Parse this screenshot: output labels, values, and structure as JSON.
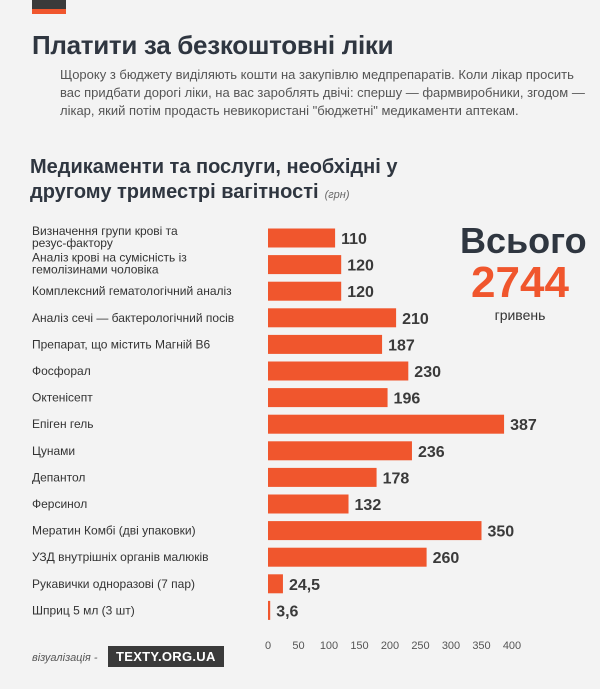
{
  "headline": "Платити за безкоштовні ліки",
  "intro": "Щороку з бюджету виділяють кошти на закупівлю медпрепаратів. Коли лікар просить вас придбати дорогі ліки, на вас зароблять двічі: спершу — фармвиробники,  згодом — лікар, який потім продасть невикористані \"бюджетні\" медикаменти аптекам.",
  "total": {
    "label": "Всього",
    "value": "2744",
    "unit": "гривень"
  },
  "footer": {
    "label": "візуалізація -",
    "logo": "TEXTY.ORG.UA"
  },
  "colors": {
    "bar": "#f0562d",
    "text": "#2f3640",
    "accent": "#f0562d",
    "background": "#f3f3f3"
  },
  "chart_data": {
    "type": "bar",
    "orientation": "horizontal",
    "title": "Медикаменти та послуги, необхідні у другому триместрі вагітності",
    "unit_label": "(грн)",
    "categories": [
      "Визначення групи крові та резус-фактору",
      "Аналіз крові на сумісність із гемолізинами чоловіка",
      "Комплексний гематологічний аналіз",
      "Аналіз сечі — бактерологічний посів",
      "Препарат, що містить Магній В6",
      "Фосфорал",
      "Октенісепт",
      "Епіген гель",
      "Цунами",
      "Депантол",
      "Ферсинол",
      "Мератин Комбі (дві упаковки)",
      "УЗД внутрішніх органів малюків",
      "Рукавички одноразові (7 пар)",
      "Шприц 5 мл (3 шт)"
    ],
    "values": [
      110,
      120,
      120,
      210,
      187,
      230,
      196,
      387,
      236,
      178,
      132,
      350,
      260,
      24.5,
      3.6
    ],
    "value_labels": [
      "110",
      "120",
      "120",
      "210",
      "187",
      "230",
      "196",
      "387",
      "236",
      "178",
      "132",
      "350",
      "260",
      "24,5",
      "3,6"
    ],
    "xlim": [
      0,
      400
    ],
    "xticks": [
      0,
      50,
      100,
      150,
      200,
      250,
      300,
      350,
      400
    ],
    "grid": false,
    "legend": "none"
  }
}
